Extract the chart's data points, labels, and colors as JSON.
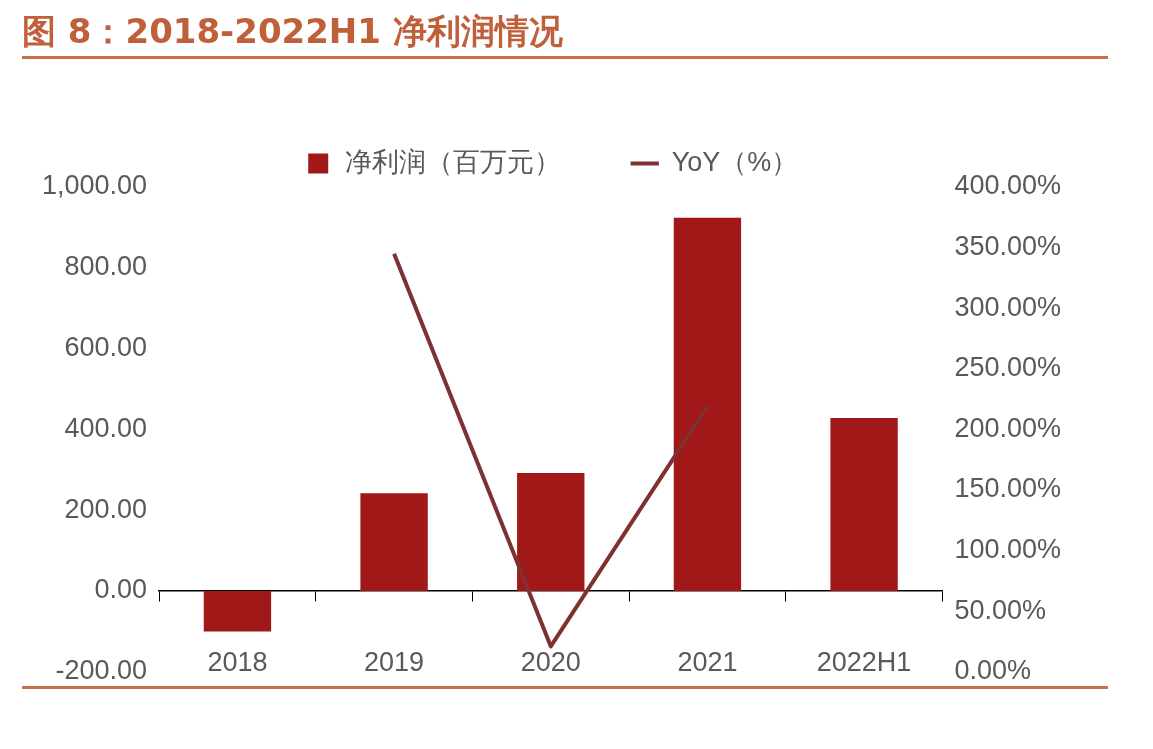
{
  "chart_data": {
    "type": "bar",
    "title": "图 8：2018-2022H1 净利润情况",
    "categories": [
      "2018",
      "2019",
      "2020",
      "2021",
      "2022H1"
    ],
    "series": [
      {
        "name": "净利润（百万元）",
        "color": "#a01818",
        "values": [
          -100,
          242,
          292,
          924,
          428
        ]
      },
      {
        "name": "YoY（%）",
        "type": "line",
        "axis": "y2",
        "color": "#7f3030",
        "values": [
          null,
          345,
          21,
          219,
          null
        ]
      }
    ],
    "ylim": [
      -200,
      1000
    ],
    "yticks": [
      {
        "value": -200,
        "label": "-200.00"
      },
      {
        "value": 0,
        "label": "0.00"
      },
      {
        "value": 200,
        "label": "200.00"
      },
      {
        "value": 400,
        "label": "400.00"
      },
      {
        "value": 600,
        "label": "600.00"
      },
      {
        "value": 800,
        "label": "800.00"
      },
      {
        "value": 1000,
        "label": "1,000.00"
      }
    ],
    "y2lim": [
      0,
      400
    ],
    "y2ticks": [
      {
        "value": 0,
        "label": "0.00%"
      },
      {
        "value": 50,
        "label": "50.00%"
      },
      {
        "value": 100,
        "label": "100.00%"
      },
      {
        "value": 150,
        "label": "150.00%"
      },
      {
        "value": 200,
        "label": "200.00%"
      },
      {
        "value": 250,
        "label": "250.00%"
      },
      {
        "value": 300,
        "label": "300.00%"
      },
      {
        "value": 350,
        "label": "350.00%"
      },
      {
        "value": 400,
        "label": "400.00%"
      }
    ],
    "legend": "top",
    "grid": false
  }
}
